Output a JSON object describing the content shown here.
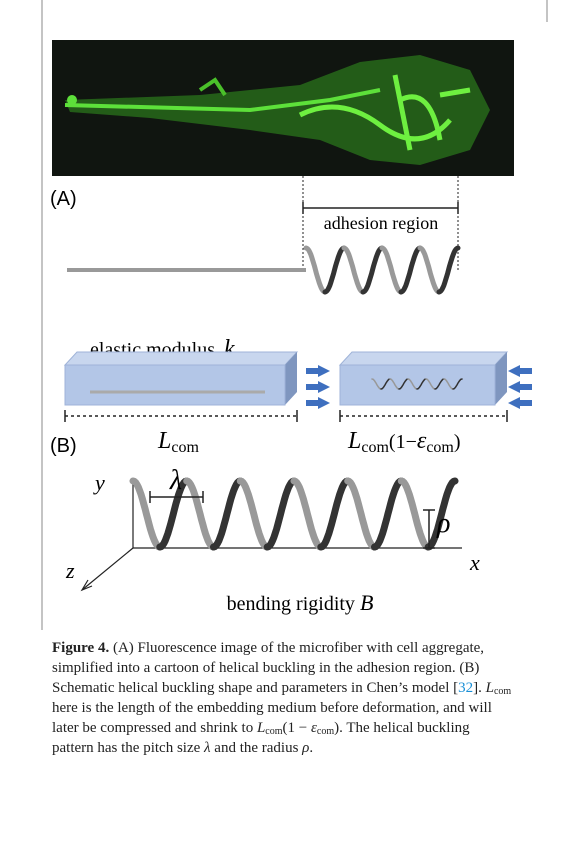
{
  "figure": {
    "panel_a": {
      "label": "(A)",
      "region_label": "adhesion region"
    },
    "panel_b": {
      "label": "(B)",
      "modulus_label": "elastic modulus",
      "modulus_symbol": "k",
      "length_symbol": "L",
      "length_subscript": "com",
      "factor_open": "(1−",
      "strain_symbol": "ε",
      "strain_subscript": "com",
      "factor_close": ")",
      "axis_y": "y",
      "axis_z": "z",
      "axis_x": "x",
      "pitch_symbol": "λ",
      "radius_symbol": "ρ",
      "rigidity_label": "bending rigidity",
      "rigidity_symbol": "B"
    }
  },
  "caption": {
    "label": "Figure 4.",
    "segments": [
      {
        "text": " (A) Fluorescence image of the microfiber with cell aggregate, simplified into a cartoon of helical buckling in the adhesion region. (B) Schematic helical buckling shape and parameters in Chen’s model ["
      },
      {
        "text": "32",
        "link": true
      },
      {
        "text": "]. "
      },
      {
        "text": "L",
        "italic": true
      },
      {
        "text": "com",
        "sub": true
      },
      {
        "text": " here is the length of the embedding medium before deformation, and will later be compressed and shrink to "
      },
      {
        "text": "L",
        "italic": true
      },
      {
        "text": "com",
        "sub": true
      },
      {
        "text": "(1 − "
      },
      {
        "text": "ε",
        "italic": true
      },
      {
        "text": "com",
        "sub": true
      },
      {
        "text": "). The helical buckling pattern has the pitch size "
      },
      {
        "text": "λ",
        "italic": true
      },
      {
        "text": " and the radius "
      },
      {
        "text": "ρ",
        "italic": true
      },
      {
        "text": "."
      }
    ]
  }
}
